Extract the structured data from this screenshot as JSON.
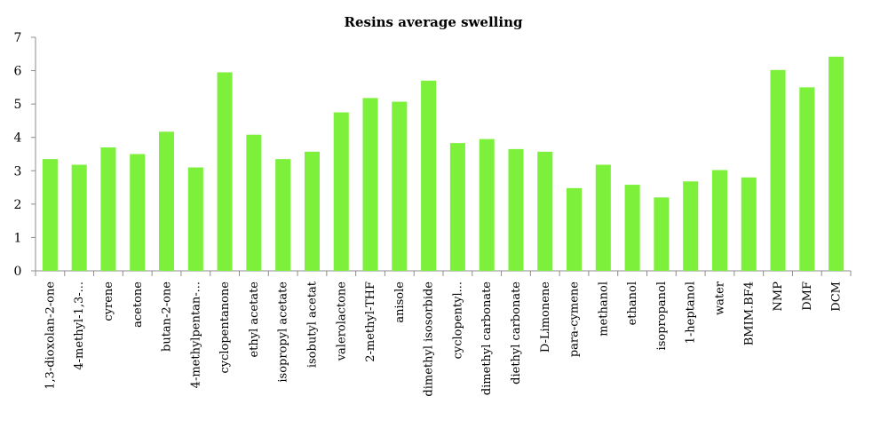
{
  "chart_data": {
    "type": "bar",
    "title": "Resins average swelling",
    "xlabel": "",
    "ylabel": "",
    "ylim": [
      0,
      7
    ],
    "yticks": [
      0,
      1,
      2,
      3,
      4,
      5,
      6,
      7
    ],
    "grid": false,
    "legend": "none",
    "bar_color": "#7cf03a",
    "categories": [
      "1,3-dioxolan-2-one",
      "4-methyl-1,3-...",
      "cyrene",
      "acetone",
      "butan-2-one",
      "4-methylpentan-...",
      "cyclopentanone",
      "ethyl acetate",
      "isopropyl acetate",
      "isobutyl acetat",
      "valerolactone",
      "2-methyl-THF",
      "anisole",
      "dimethyl isosorbide",
      "cyclopentyl...",
      "dimethyl carbonate",
      "diethyl carbonate",
      "D-Limonene",
      "para-cymene",
      "methanol",
      "ethanol",
      "isopropanol",
      "1-heptanol",
      "water",
      "BMIM.BF4",
      "NMP",
      "DMF",
      "DCM"
    ],
    "values": [
      3.35,
      3.18,
      3.7,
      3.5,
      4.17,
      3.1,
      5.95,
      4.08,
      3.35,
      3.57,
      4.75,
      5.18,
      5.07,
      5.7,
      3.83,
      3.95,
      3.65,
      3.57,
      2.48,
      3.18,
      2.58,
      2.2,
      2.68,
      3.02,
      2.8,
      6.02,
      5.5,
      6.42
    ]
  }
}
